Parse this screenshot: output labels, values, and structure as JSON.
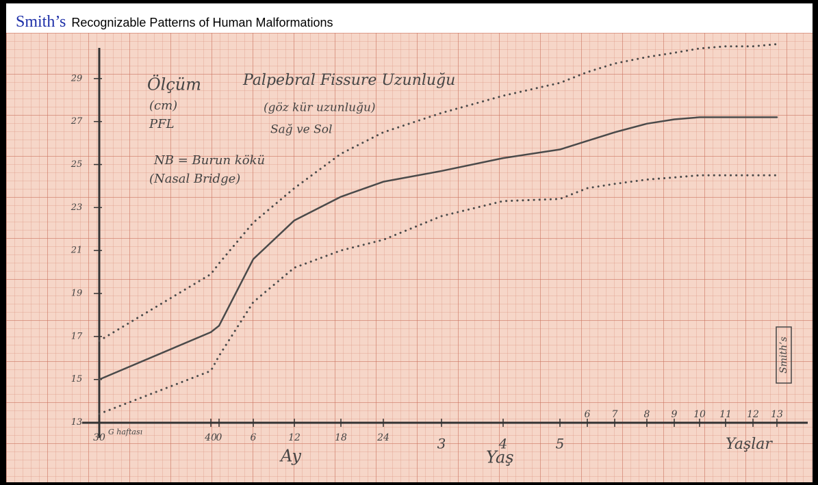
{
  "header": {
    "brand": "Smith’s",
    "title": "Recognizable Patterns of Human Malformations"
  },
  "chart_data": {
    "type": "line",
    "notes": [
      "Ölçüm",
      "(cm)",
      "PFL",
      "Palpebral Fissure Uzunluğu",
      "(göz kür uzunluğu)",
      "Sağ ve Sol",
      "NB = Burun kökü",
      "(Nasal Bridge)"
    ],
    "x_axis_labels": [
      "G haftası",
      "Ay",
      "Yaş",
      "Yaşlar"
    ],
    "stamp": "Smith’s",
    "categories": [
      "30",
      "40",
      "0",
      "6",
      "12",
      "18",
      "24",
      "3",
      "4",
      "5",
      "6",
      "7",
      "8",
      "9",
      "10",
      "11",
      "12",
      "13"
    ],
    "series": [
      {
        "color": "#4a4a4a",
        "line_style": "dotted",
        "values": [
          16.8,
          19.9,
          20.4,
          22.3,
          23.9,
          25.5,
          26.5,
          27.4,
          28.2,
          28.8,
          29.3,
          29.7,
          30.0,
          30.2,
          30.4,
          30.5,
          30.5,
          30.6
        ]
      },
      {
        "color": "#4a4a4a",
        "line_style": "solid",
        "values": [
          15.0,
          17.2,
          17.5,
          20.6,
          22.4,
          23.5,
          24.2,
          24.7,
          25.3,
          25.7,
          26.1,
          26.5,
          26.9,
          27.1,
          27.2,
          27.2,
          27.2,
          27.2
        ]
      },
      {
        "color": "#4a4a4a",
        "line_style": "dotted",
        "values": [
          13.4,
          15.4,
          16.1,
          18.6,
          20.2,
          21.0,
          21.5,
          22.6,
          23.3,
          23.4,
          23.9,
          24.1,
          24.3,
          24.4,
          24.5,
          24.5,
          24.5,
          24.5
        ]
      }
    ],
    "ylim": [
      12,
      31
    ],
    "yticks": [
      13,
      15,
      17,
      19,
      21,
      23,
      25,
      27,
      29
    ]
  }
}
